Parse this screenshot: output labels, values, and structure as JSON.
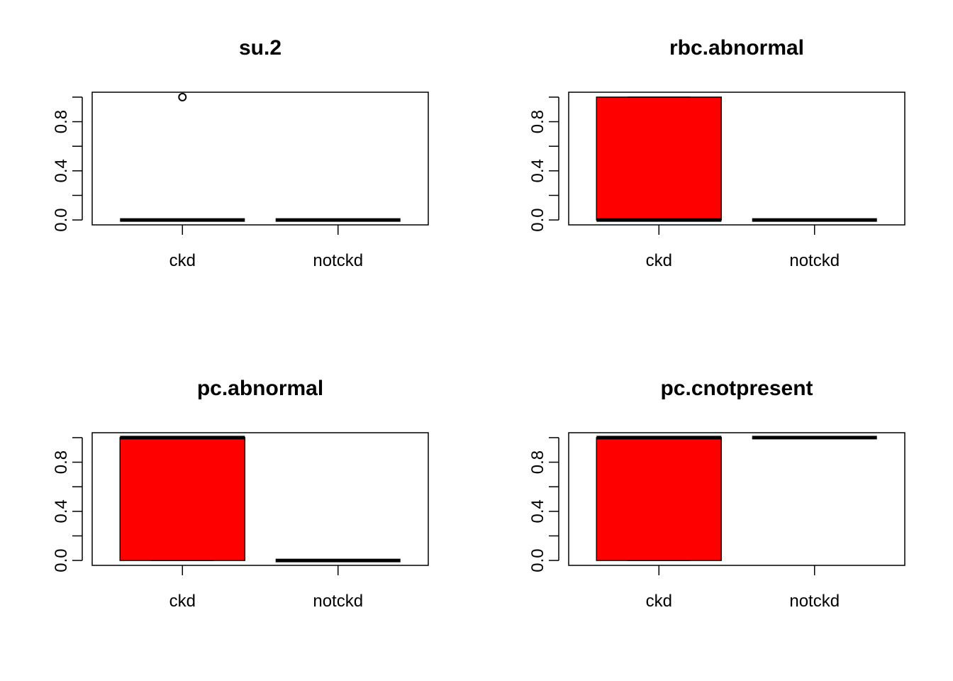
{
  "chart_data": [
    {
      "type": "boxplot",
      "title": "su.2",
      "categories": [
        "ckd",
        "notckd"
      ],
      "ylim": [
        0,
        1
      ],
      "y_ticks": [
        0.0,
        0.2,
        0.4,
        0.6,
        0.8,
        1.0
      ],
      "y_tick_labels": [
        "0.0",
        "0.4",
        "0.8"
      ],
      "boxes": [
        {
          "category": "ckd",
          "q1": 0,
          "median": 0,
          "q3": 0,
          "whisker_low": 0,
          "whisker_high": 0,
          "outliers": [
            1
          ],
          "fill": "none"
        },
        {
          "category": "notckd",
          "q1": 0,
          "median": 0,
          "q3": 0,
          "whisker_low": 0,
          "whisker_high": 0,
          "outliers": [],
          "fill": "none"
        }
      ]
    },
    {
      "type": "boxplot",
      "title": "rbc.abnormal",
      "categories": [
        "ckd",
        "notckd"
      ],
      "ylim": [
        0,
        1
      ],
      "y_ticks": [
        0.0,
        0.2,
        0.4,
        0.6,
        0.8,
        1.0
      ],
      "y_tick_labels": [
        "0.0",
        "0.4",
        "0.8"
      ],
      "boxes": [
        {
          "category": "ckd",
          "q1": 0,
          "median": 0,
          "q3": 1,
          "whisker_low": 0,
          "whisker_high": 1,
          "outliers": [],
          "fill": "#ff0000"
        },
        {
          "category": "notckd",
          "q1": 0,
          "median": 0,
          "q3": 0,
          "whisker_low": 0,
          "whisker_high": 0,
          "outliers": [],
          "fill": "none"
        }
      ]
    },
    {
      "type": "boxplot",
      "title": "pc.abnormal",
      "categories": [
        "ckd",
        "notckd"
      ],
      "ylim": [
        0,
        1
      ],
      "y_ticks": [
        0.0,
        0.2,
        0.4,
        0.6,
        0.8,
        1.0
      ],
      "y_tick_labels": [
        "0.0",
        "0.4",
        "0.8"
      ],
      "boxes": [
        {
          "category": "ckd",
          "q1": 0,
          "median": 1,
          "q3": 1,
          "whisker_low": 0,
          "whisker_high": 1,
          "outliers": [],
          "fill": "#ff0000"
        },
        {
          "category": "notckd",
          "q1": 0,
          "median": 0,
          "q3": 0,
          "whisker_low": 0,
          "whisker_high": 0,
          "outliers": [],
          "fill": "none"
        }
      ]
    },
    {
      "type": "boxplot",
      "title": "pc.cnotpresent",
      "categories": [
        "ckd",
        "notckd"
      ],
      "ylim": [
        0,
        1
      ],
      "y_ticks": [
        0.0,
        0.2,
        0.4,
        0.6,
        0.8,
        1.0
      ],
      "y_tick_labels": [
        "0.0",
        "0.4",
        "0.8"
      ],
      "boxes": [
        {
          "category": "ckd",
          "q1": 0,
          "median": 1,
          "q3": 1,
          "whisker_low": 0,
          "whisker_high": 1,
          "outliers": [],
          "fill": "#ff0000"
        },
        {
          "category": "notckd",
          "q1": 1,
          "median": 1,
          "q3": 1,
          "whisker_low": 1,
          "whisker_high": 1,
          "outliers": [],
          "fill": "none"
        }
      ]
    }
  ]
}
